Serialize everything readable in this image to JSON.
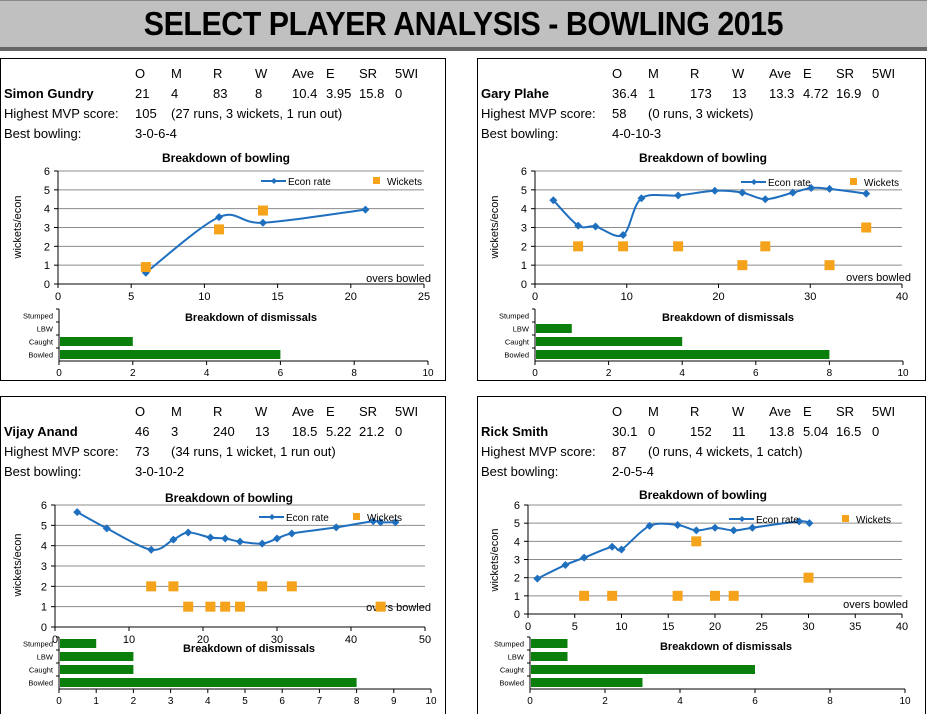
{
  "header": {
    "title": "SELECT PLAYER ANALYSIS - BOWLING 2015"
  },
  "stat_headers": [
    "O",
    "M",
    "R",
    "W",
    "Ave",
    "E",
    "SR",
    "5WI"
  ],
  "labels": {
    "mvp": "Highest MVP score:",
    "best": "Best bowling:"
  },
  "colors": {
    "econ": "#1f6fbf",
    "wickets": "#f5a31a",
    "bars": "#0b7f0b",
    "grid": "#8c8c8c"
  },
  "players": [
    {
      "name": "Simon Gundry",
      "stats": [
        "21",
        "4",
        "83",
        "8",
        "10.4",
        "3.95",
        "15.8",
        "0"
      ],
      "mvp_score": "105",
      "mvp_detail": "(27 runs, 3 wickets, 1 run out)",
      "best_bowling": "3-0-6-4"
    },
    {
      "name": "Gary Plahe",
      "stats": [
        "36.4",
        "1",
        "173",
        "13",
        "13.3",
        "4.72",
        "16.9",
        "0"
      ],
      "mvp_score": "58",
      "mvp_detail": "(0 runs, 3 wickets)",
      "best_bowling": "4-0-10-3"
    },
    {
      "name": "Vijay Anand",
      "stats": [
        "46",
        "3",
        "240",
        "13",
        "18.5",
        "5.22",
        "21.2",
        "0"
      ],
      "mvp_score": "73",
      "mvp_detail": "(34 runs, 1 wicket, 1 run out)",
      "best_bowling": "3-0-10-2"
    },
    {
      "name": "Rick Smith",
      "stats": [
        "30.1",
        "0",
        "152",
        "11",
        "13.8",
        "5.04",
        "16.5",
        "0"
      ],
      "mvp_score": "87",
      "mvp_detail": "(0 runs, 4 wickets, 1 catch)",
      "best_bowling": "2-0-5-4"
    }
  ],
  "chart_data": [
    {
      "type": "line",
      "title": "Breakdown of bowling",
      "player": "Simon Gundry",
      "xlabel": "overs bowled",
      "ylabel": "wickets/econ",
      "xlim": [
        0,
        25
      ],
      "xticks": [
        "0",
        "5",
        "10",
        "15",
        "20",
        "25"
      ],
      "ylim": [
        0,
        6
      ],
      "yticks": [
        "0",
        "1",
        "2",
        "3",
        "4",
        "5",
        "6"
      ],
      "legend": "top-right",
      "grid": true,
      "series": [
        {
          "name": "Econ rate",
          "style": "line-diamond",
          "points": [
            [
              6,
              0.6
            ],
            [
              11,
              3.55
            ],
            [
              14,
              3.25
            ],
            [
              21,
              3.95
            ]
          ]
        },
        {
          "name": "Wickets",
          "style": "square",
          "points": [
            [
              6,
              0.9
            ],
            [
              11,
              2.9
            ],
            [
              14,
              3.9
            ]
          ]
        }
      ]
    },
    {
      "type": "bar",
      "title": "Breakdown of dismissals",
      "player": "Simon Gundry",
      "categories": [
        "Stumped",
        "LBW",
        "Caught",
        "Bowled"
      ],
      "values": [
        0,
        0,
        2,
        6
      ],
      "xlim": [
        0,
        10
      ],
      "xticks": [
        "0",
        "2",
        "4",
        "6",
        "8",
        "10"
      ]
    },
    {
      "type": "line",
      "title": "Breakdown of bowling",
      "player": "Gary Plahe",
      "xlabel": "overs bowled",
      "ylabel": "wickets/econ",
      "xlim": [
        0,
        40
      ],
      "xticks": [
        "0",
        "10",
        "20",
        "30",
        "40"
      ],
      "ylim": [
        0,
        6
      ],
      "yticks": [
        "0",
        "1",
        "2",
        "3",
        "4",
        "5",
        "6"
      ],
      "legend": "top-right",
      "grid": true,
      "series": [
        {
          "name": "Econ rate",
          "style": "line-diamond",
          "points": [
            [
              2,
              4.45
            ],
            [
              4.7,
              3.1
            ],
            [
              6.6,
              3.05
            ],
            [
              9.6,
              2.6
            ],
            [
              11.6,
              4.55
            ],
            [
              15.6,
              4.7
            ],
            [
              19.6,
              4.95
            ],
            [
              22.6,
              4.85
            ],
            [
              25.1,
              4.5
            ],
            [
              28.1,
              4.85
            ],
            [
              30.1,
              5.1
            ],
            [
              32.1,
              5.05
            ],
            [
              36.1,
              4.8
            ]
          ]
        },
        {
          "name": "Wickets",
          "style": "square",
          "points": [
            [
              4.7,
              2
            ],
            [
              9.6,
              2
            ],
            [
              15.6,
              2
            ],
            [
              22.6,
              1
            ],
            [
              25.1,
              2
            ],
            [
              32.1,
              1
            ],
            [
              36.1,
              3
            ]
          ]
        }
      ]
    },
    {
      "type": "bar",
      "title": "Breakdown of dismissals",
      "player": "Gary Plahe",
      "categories": [
        "Stumped",
        "LBW",
        "Caught",
        "Bowled"
      ],
      "values": [
        0,
        1,
        4,
        8
      ],
      "xlim": [
        0,
        10
      ],
      "xticks": [
        "0",
        "2",
        "4",
        "6",
        "8",
        "10"
      ]
    },
    {
      "type": "line",
      "title": "Breakdown  of bowling",
      "player": "Vijay Anand",
      "xlabel": "overs bowled",
      "ylabel": "wickets/econ",
      "xlim": [
        0,
        50
      ],
      "xticks": [
        "0",
        "10",
        "20",
        "30",
        "40",
        "50"
      ],
      "ylim": [
        0,
        6
      ],
      "yticks": [
        "0",
        "1",
        "2",
        "3",
        "4",
        "5",
        "6"
      ],
      "legend": "top-right",
      "grid": true,
      "series": [
        {
          "name": "Econ rate",
          "style": "line-diamond",
          "points": [
            [
              3,
              5.65
            ],
            [
              7,
              4.85
            ],
            [
              13,
              3.8
            ],
            [
              16,
              4.3
            ],
            [
              18,
              4.65
            ],
            [
              21,
              4.4
            ],
            [
              23,
              4.35
            ],
            [
              25,
              4.2
            ],
            [
              28,
              4.1
            ],
            [
              30,
              4.35
            ],
            [
              32,
              4.6
            ],
            [
              38,
              4.9
            ],
            [
              43,
              5.2
            ],
            [
              44,
              5.15
            ],
            [
              46,
              5.15
            ]
          ]
        },
        {
          "name": "Wickets",
          "style": "square",
          "points": [
            [
              13,
              2
            ],
            [
              16,
              2
            ],
            [
              18,
              1
            ],
            [
              21,
              1
            ],
            [
              23,
              1
            ],
            [
              25,
              1
            ],
            [
              28,
              2
            ],
            [
              32,
              2
            ],
            [
              44,
              1
            ]
          ]
        }
      ]
    },
    {
      "type": "bar",
      "title": "Breakdown of dismissals",
      "player": "Vijay Anand",
      "categories": [
        "Stumped",
        "LBW",
        "Caught",
        "Bowled"
      ],
      "values": [
        1,
        2,
        2,
        8
      ],
      "xlim": [
        0,
        10
      ],
      "xticks": [
        "0",
        "1",
        "2",
        "3",
        "4",
        "5",
        "6",
        "7",
        "8",
        "9",
        "10"
      ]
    },
    {
      "type": "line",
      "title": "Breakdown  of bowling",
      "player": "Rick Smith",
      "xlabel": "overs bowled",
      "ylabel": "wickets/econ",
      "xlim": [
        0,
        40
      ],
      "xticks": [
        "0",
        "5",
        "10",
        "15",
        "20",
        "25",
        "30",
        "35",
        "40"
      ],
      "ylim": [
        0,
        6
      ],
      "yticks": [
        "0",
        "1",
        "2",
        "3",
        "4",
        "5",
        "6"
      ],
      "legend": "top-right",
      "grid": true,
      "series": [
        {
          "name": "Econ rate",
          "style": "line-diamond",
          "points": [
            [
              1,
              1.95
            ],
            [
              4,
              2.7
            ],
            [
              6,
              3.1
            ],
            [
              9,
              3.7
            ],
            [
              10,
              3.55
            ],
            [
              13,
              4.85
            ],
            [
              16,
              4.9
            ],
            [
              18,
              4.6
            ],
            [
              20,
              4.75
            ],
            [
              22,
              4.6
            ],
            [
              24,
              4.75
            ],
            [
              29,
              5.1
            ],
            [
              30.1,
              5.0
            ]
          ]
        },
        {
          "name": "Wickets",
          "style": "square",
          "points": [
            [
              6,
              1
            ],
            [
              9,
              1
            ],
            [
              16,
              1
            ],
            [
              18,
              4
            ],
            [
              20,
              1
            ],
            [
              22,
              1
            ],
            [
              30,
              2
            ]
          ]
        }
      ]
    },
    {
      "type": "bar",
      "title": "Breakdown of dismissals",
      "player": "Rick Smith",
      "categories": [
        "Stumped",
        "LBW",
        "Caught",
        "Bowled"
      ],
      "values": [
        1,
        1,
        6,
        3
      ],
      "xlim": [
        0,
        10
      ],
      "xticks": [
        "0",
        "2",
        "4",
        "6",
        "8",
        "10"
      ]
    }
  ]
}
